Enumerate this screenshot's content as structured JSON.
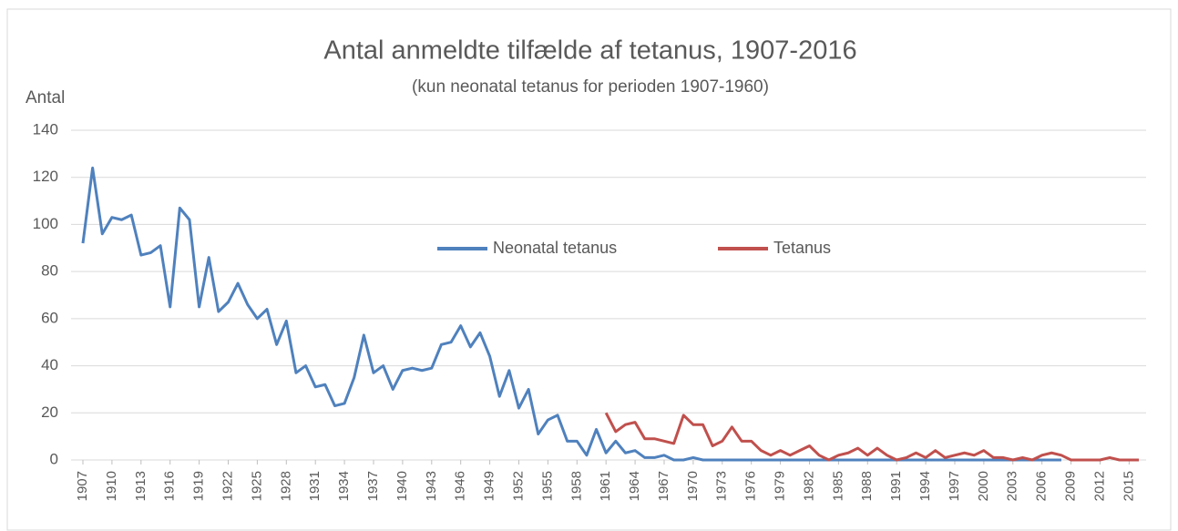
{
  "chart_data": {
    "type": "line",
    "title": "Antal anmeldte tilfælde af tetanus, 1907-2016",
    "subtitle": "(kun neonatal tetanus for perioden 1907-1960)",
    "y_label": "Antal",
    "x": [
      1907,
      1908,
      1909,
      1910,
      1911,
      1912,
      1913,
      1914,
      1915,
      1916,
      1917,
      1918,
      1919,
      1920,
      1921,
      1922,
      1923,
      1924,
      1925,
      1926,
      1927,
      1928,
      1929,
      1930,
      1931,
      1932,
      1933,
      1934,
      1935,
      1936,
      1937,
      1938,
      1939,
      1940,
      1941,
      1942,
      1943,
      1944,
      1945,
      1946,
      1947,
      1948,
      1949,
      1950,
      1951,
      1952,
      1953,
      1954,
      1955,
      1956,
      1957,
      1958,
      1959,
      1960,
      1961,
      1962,
      1963,
      1964,
      1965,
      1966,
      1967,
      1968,
      1969,
      1970,
      1971,
      1972,
      1973,
      1974,
      1975,
      1976,
      1977,
      1978,
      1979,
      1980,
      1981,
      1982,
      1983,
      1984,
      1985,
      1986,
      1987,
      1988,
      1989,
      1990,
      1991,
      1992,
      1993,
      1994,
      1995,
      1996,
      1997,
      1998,
      1999,
      2000,
      2001,
      2002,
      2003,
      2004,
      2005,
      2006,
      2007,
      2008,
      2009,
      2010,
      2011,
      2012,
      2013,
      2014,
      2015,
      2016
    ],
    "series": [
      {
        "name": "Neonatal tetanus",
        "color": "#4f81bd",
        "values": [
          92,
          124,
          96,
          103,
          102,
          104,
          87,
          88,
          91,
          65,
          107,
          102,
          65,
          86,
          63,
          67,
          75,
          66,
          60,
          64,
          49,
          59,
          37,
          40,
          31,
          32,
          23,
          24,
          35,
          53,
          37,
          40,
          30,
          38,
          39,
          38,
          39,
          49,
          50,
          57,
          48,
          54,
          44,
          27,
          38,
          22,
          30,
          11,
          17,
          19,
          8,
          8,
          2,
          13,
          3,
          8,
          3,
          4,
          1,
          1,
          2,
          0,
          0,
          1,
          0,
          0,
          0,
          0,
          0,
          0,
          0,
          0,
          0,
          0,
          0,
          0,
          0,
          0,
          0,
          0,
          0,
          0,
          0,
          0,
          0,
          0,
          0,
          0,
          0,
          0,
          0,
          0,
          0,
          0,
          0,
          0,
          0,
          0,
          0,
          0,
          0,
          0,
          null,
          null,
          null,
          null,
          null,
          null,
          null,
          null
        ]
      },
      {
        "name": "Tetanus",
        "color": "#c0504d",
        "values": [
          null,
          null,
          null,
          null,
          null,
          null,
          null,
          null,
          null,
          null,
          null,
          null,
          null,
          null,
          null,
          null,
          null,
          null,
          null,
          null,
          null,
          null,
          null,
          null,
          null,
          null,
          null,
          null,
          null,
          null,
          null,
          null,
          null,
          null,
          null,
          null,
          null,
          null,
          null,
          null,
          null,
          null,
          null,
          null,
          null,
          null,
          null,
          null,
          null,
          null,
          null,
          null,
          null,
          null,
          20,
          12,
          15,
          16,
          9,
          9,
          8,
          7,
          19,
          15,
          15,
          6,
          8,
          14,
          8,
          8,
          4,
          2,
          4,
          2,
          4,
          6,
          2,
          0,
          2,
          3,
          5,
          2,
          5,
          2,
          0,
          1,
          3,
          1,
          4,
          1,
          2,
          3,
          2,
          4,
          1,
          1,
          0,
          1,
          0,
          2,
          3,
          2,
          0,
          0,
          0,
          0,
          1,
          0,
          0,
          0
        ]
      }
    ],
    "xlim": [
      1907,
      2016
    ],
    "xticks": [
      1907,
      1910,
      1913,
      1916,
      1919,
      1922,
      1925,
      1928,
      1931,
      1934,
      1937,
      1940,
      1943,
      1946,
      1949,
      1952,
      1955,
      1958,
      1961,
      1964,
      1967,
      1970,
      1973,
      1976,
      1979,
      1982,
      1985,
      1988,
      1991,
      1994,
      1997,
      2000,
      2003,
      2006,
      2009,
      2012,
      2015
    ],
    "ylim": [
      0,
      140
    ],
    "yticks": [
      0,
      20,
      40,
      60,
      80,
      100,
      120,
      140
    ],
    "grid": true,
    "legend": "center"
  }
}
